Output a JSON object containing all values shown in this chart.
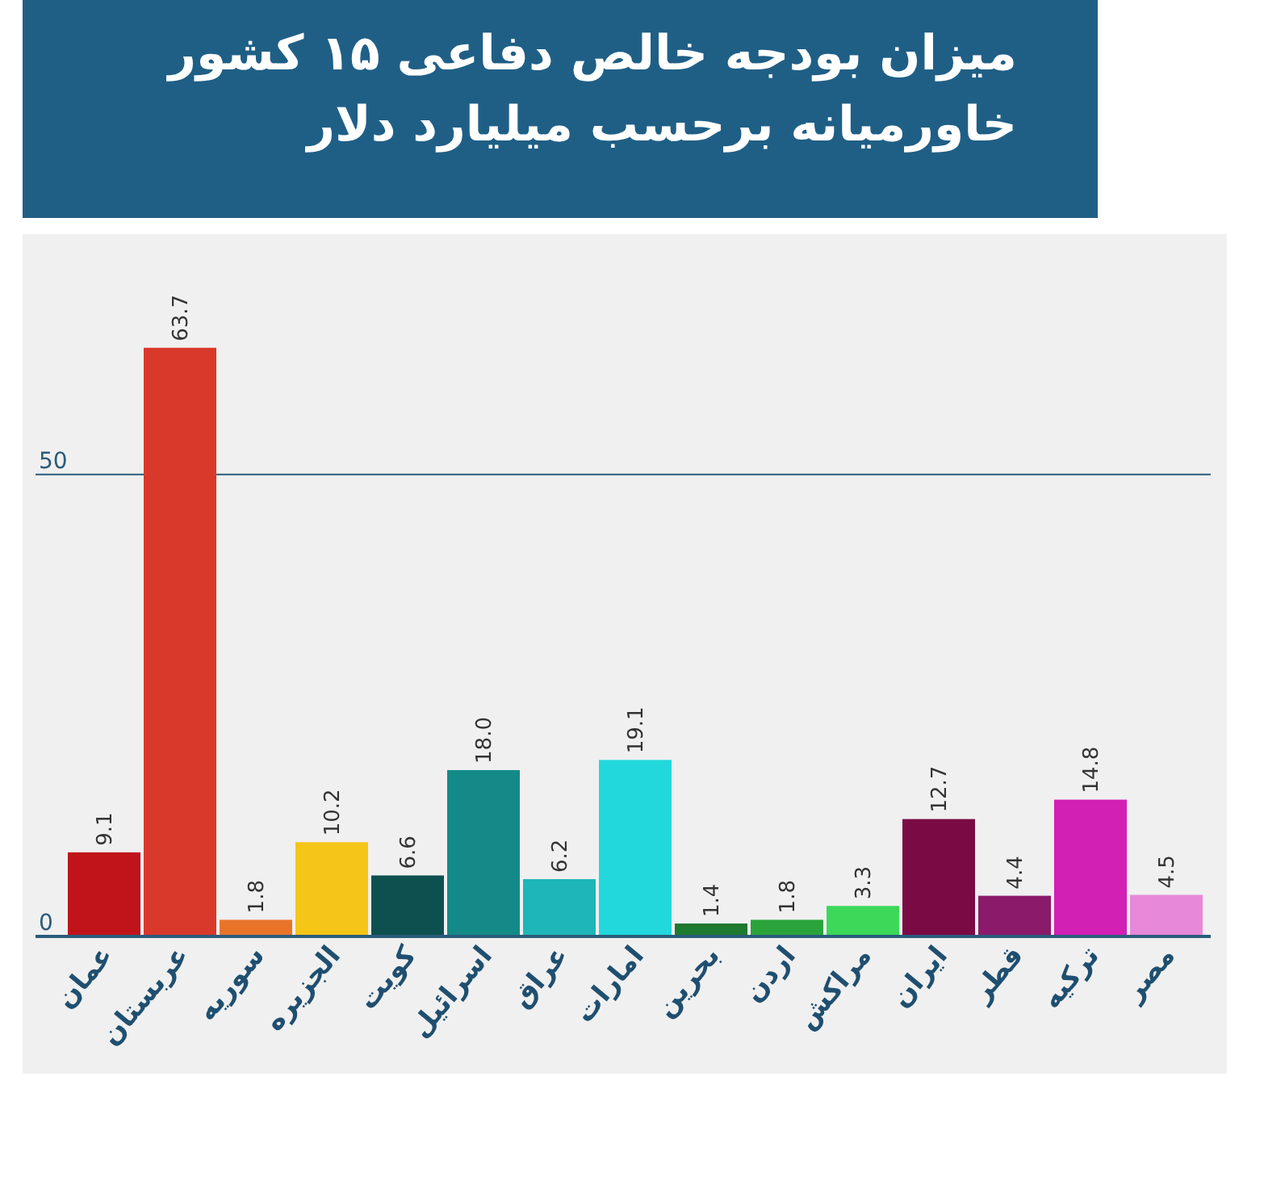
{
  "chart_data": {
    "type": "bar",
    "title": "میزان بودجه خالص دفاعی ۱۵ کشور خاورمیانه برحسب میلیارد دلار",
    "categories": [
      "عمان",
      "عربستان",
      "سوریه",
      "الجزیره",
      "کویت",
      "اسرائیل",
      "عراق",
      "امارات",
      "بحرین",
      "اردن",
      "مراکش",
      "ایران",
      "قطر",
      "ترکیه",
      "مصر"
    ],
    "values": [
      9.1,
      63.7,
      1.8,
      10.2,
      6.6,
      18.0,
      6.2,
      19.1,
      1.4,
      1.8,
      3.3,
      12.7,
      4.4,
      14.8,
      4.5
    ],
    "value_labels": [
      "9.1",
      "63.7",
      "1.8",
      "10.2",
      "6.6",
      "18.0",
      "6.2",
      "19.1",
      "1.4",
      "1.8",
      "3.3",
      "12.7",
      "4.4",
      "14.8",
      "4.5"
    ],
    "colors": [
      "#c0141a",
      "#d9392a",
      "#e8742a",
      "#f5c518",
      "#0e5050",
      "#138a88",
      "#1eb6b8",
      "#22d8dc",
      "#1d7a2e",
      "#2aa43a",
      "#3cd85a",
      "#7a0a44",
      "#8a1a6a",
      "#d21fb4",
      "#e888d8"
    ],
    "ylim": [
      0,
      76
    ],
    "yticks": [
      0,
      50
    ],
    "ref_lines": [
      {
        "axis": "y",
        "value": 50,
        "color": "#2b5c7a"
      }
    ]
  }
}
